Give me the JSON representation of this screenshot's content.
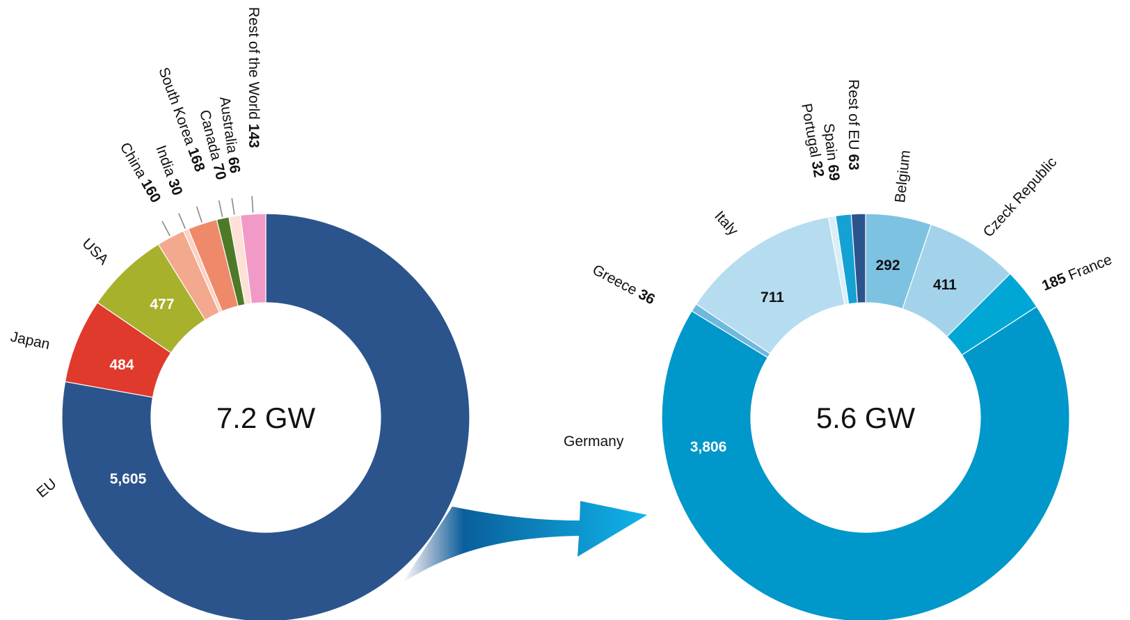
{
  "chart_data": [
    {
      "type": "pie",
      "center_label": "7.2 GW",
      "colors": {
        "EU": "#2c548c",
        "Japan": "#e03a2c",
        "USA": "#a8b12c",
        "China": "#f2a98e",
        "India": "#fbd2c2",
        "South Korea": "#ee8a6a",
        "Canada": "#4e7a28",
        "Australia": "#fde0d6",
        "Rest of the World": "#f29ac7"
      },
      "slices": [
        {
          "name": "EU",
          "value": 5605,
          "value_label": "5,605"
        },
        {
          "name": "Japan",
          "value": 484,
          "value_label": "484"
        },
        {
          "name": "USA",
          "value": 477,
          "value_label": "477"
        },
        {
          "name": "China",
          "value": 160,
          "value_label": "160"
        },
        {
          "name": "India",
          "value": 30,
          "value_label": "30"
        },
        {
          "name": "South Korea",
          "value": 168,
          "value_label": "168"
        },
        {
          "name": "Canada",
          "value": 70,
          "value_label": "70"
        },
        {
          "name": "Australia",
          "value": 66,
          "value_label": "66"
        },
        {
          "name": "Rest of the World",
          "value": 143,
          "value_label": "143"
        }
      ]
    },
    {
      "type": "pie",
      "center_label": "5.6 GW",
      "colors": {
        "Belgium": "#7ec2e2",
        "Czeck Republic": "#a3d3ea",
        "France": "#00a7d4",
        "Germany": "#0097ca",
        "Greece": "#6fb8de",
        "Italy": "#b6dcef",
        "Portugal": "#daeef8",
        "Spain": "#16a1d5",
        "Rest of EU": "#2c548c"
      },
      "slices": [
        {
          "name": "Belgium",
          "value": 292,
          "value_label": "292"
        },
        {
          "name": "Czeck Republic",
          "value": 411,
          "value_label": "411"
        },
        {
          "name": "France",
          "value": 185,
          "value_label": "185"
        },
        {
          "name": "Germany",
          "value": 3806,
          "value_label": "3,806"
        },
        {
          "name": "Greece",
          "value": 36,
          "value_label": "36"
        },
        {
          "name": "Italy",
          "value": 711,
          "value_label": "711"
        },
        {
          "name": "Portugal",
          "value": 32,
          "value_label": "32"
        },
        {
          "name": "Spain",
          "value": 69,
          "value_label": "69"
        },
        {
          "name": "Rest of EU",
          "value": 63,
          "value_label": "63"
        }
      ]
    }
  ]
}
